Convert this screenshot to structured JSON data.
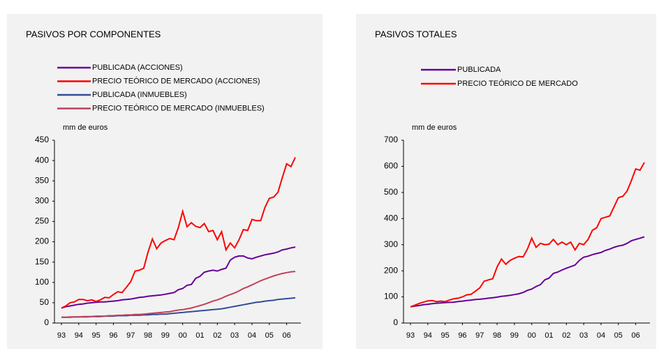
{
  "chart_data": [
    {
      "type": "line",
      "title": "PASIVOS  POR COMPONENTES",
      "ylabel": "mm de euros",
      "categories": [
        "93",
        null,
        null,
        null,
        "94",
        null,
        null,
        null,
        "95",
        null,
        null,
        null,
        "96",
        null,
        null,
        null,
        "97",
        null,
        null,
        null,
        "98",
        null,
        null,
        null,
        "99",
        null,
        null,
        null,
        "00",
        null,
        null,
        null,
        "01",
        null,
        null,
        null,
        "02",
        null,
        null,
        null,
        "03",
        null,
        null,
        null,
        "04",
        null,
        null,
        null,
        "05",
        null,
        null,
        null,
        "06",
        null,
        null
      ],
      "ylim": [
        0,
        450
      ],
      "yticks": [
        0,
        50,
        100,
        150,
        200,
        250,
        300,
        350,
        400,
        450
      ],
      "series": [
        {
          "name": "PUBLICADA (ACCIONES)",
          "color": "#660099",
          "values": [
            37,
            40,
            42,
            44,
            46,
            47,
            49,
            50,
            51,
            52,
            52,
            53,
            54,
            55,
            57,
            58,
            59,
            61,
            63,
            64,
            66,
            67,
            68,
            69,
            71,
            73,
            75,
            82,
            85,
            93,
            95,
            110,
            115,
            125,
            128,
            130,
            128,
            132,
            135,
            155,
            162,
            165,
            165,
            160,
            158,
            162,
            165,
            168,
            170,
            172,
            175,
            180,
            182,
            185,
            187
          ]
        },
        {
          "name": "PRECIO TEÓRICO DE MERCADO (ACCIONES)",
          "color": "#ff0000",
          "values": [
            37,
            42,
            50,
            52,
            58,
            58,
            55,
            57,
            53,
            57,
            63,
            62,
            70,
            77,
            75,
            88,
            102,
            128,
            130,
            135,
            175,
            207,
            183,
            197,
            203,
            208,
            205,
            235,
            275,
            237,
            247,
            238,
            235,
            245,
            225,
            228,
            205,
            225,
            180,
            197,
            185,
            205,
            230,
            228,
            255,
            252,
            252,
            285,
            307,
            310,
            322,
            358,
            392,
            385,
            408
          ]
        },
        {
          "name": "PUBLICADA (INMUEBLES)",
          "color": "#334c99",
          "values": [
            14,
            14,
            14,
            15,
            15,
            15,
            15,
            16,
            16,
            16,
            17,
            17,
            17,
            18,
            18,
            18,
            19,
            19,
            19,
            20,
            20,
            21,
            21,
            22,
            22,
            23,
            24,
            25,
            26,
            27,
            28,
            29,
            30,
            31,
            32,
            33,
            34,
            35,
            37,
            39,
            41,
            43,
            45,
            47,
            49,
            51,
            52,
            54,
            55,
            56,
            58,
            59,
            60,
            61,
            62
          ]
        },
        {
          "name": "PRECIO TEÓRICO DE MERCADO (INMUEBLES)",
          "color": "#c0405a",
          "values": [
            14,
            14,
            15,
            15,
            15,
            16,
            16,
            16,
            17,
            17,
            17,
            18,
            18,
            19,
            19,
            20,
            20,
            21,
            21,
            22,
            23,
            24,
            25,
            26,
            27,
            28,
            30,
            32,
            33,
            35,
            37,
            40,
            43,
            46,
            50,
            54,
            57,
            61,
            66,
            70,
            74,
            79,
            85,
            89,
            94,
            99,
            104,
            108,
            112,
            116,
            119,
            122,
            124,
            126,
            127
          ]
        }
      ]
    },
    {
      "type": "line",
      "title": "PASIVOS TOTALES",
      "ylabel": "mm de euros",
      "categories": [
        "93",
        null,
        null,
        null,
        "94",
        null,
        null,
        null,
        "95",
        null,
        null,
        null,
        "96",
        null,
        null,
        null,
        "97",
        null,
        null,
        null,
        "98",
        null,
        null,
        null,
        "99",
        null,
        null,
        null,
        "00",
        null,
        null,
        null,
        "01",
        null,
        null,
        null,
        "02",
        null,
        null,
        null,
        "03",
        null,
        null,
        null,
        "04",
        null,
        null,
        null,
        "05",
        null,
        null,
        null,
        "06",
        null,
        null
      ],
      "ylim": [
        0,
        700
      ],
      "yticks": [
        0,
        100,
        200,
        300,
        400,
        500,
        600,
        700
      ],
      "series": [
        {
          "name": "PUBLICADA",
          "color": "#660099",
          "values": [
            62,
            65,
            67,
            70,
            72,
            74,
            76,
            77,
            78,
            79,
            80,
            82,
            84,
            86,
            88,
            90,
            91,
            93,
            95,
            97,
            99,
            102,
            104,
            106,
            109,
            112,
            117,
            125,
            130,
            140,
            147,
            165,
            172,
            190,
            195,
            203,
            210,
            216,
            222,
            240,
            252,
            256,
            262,
            266,
            270,
            278,
            283,
            290,
            295,
            298,
            305,
            315,
            320,
            325,
            330
          ]
        },
        {
          "name": "PRECIO TEÓRICO DE MERCADO",
          "color": "#ff0000",
          "values": [
            62,
            68,
            75,
            80,
            85,
            86,
            82,
            84,
            82,
            88,
            93,
            95,
            100,
            108,
            110,
            122,
            135,
            160,
            165,
            170,
            215,
            245,
            225,
            240,
            248,
            255,
            253,
            283,
            325,
            290,
            305,
            300,
            302,
            320,
            300,
            310,
            300,
            310,
            280,
            305,
            300,
            320,
            355,
            365,
            400,
            405,
            410,
            445,
            480,
            485,
            505,
            545,
            590,
            585,
            615
          ]
        }
      ]
    }
  ]
}
